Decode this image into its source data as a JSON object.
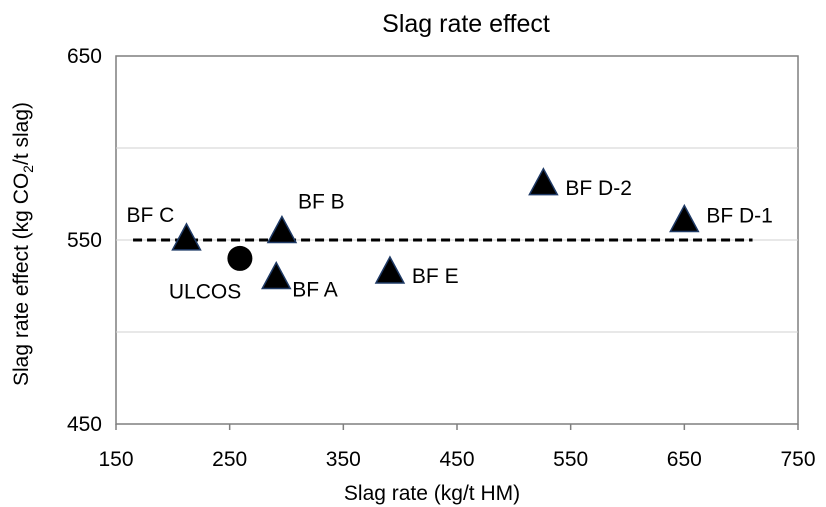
{
  "chart_data": {
    "type": "scatter",
    "title": "Slag rate effect",
    "xlabel": "Slag rate (kg/t HM)",
    "ylabel_parts": [
      "Slag rate effect (kg CO",
      "2",
      "/t slag)"
    ],
    "xlim": [
      150,
      750
    ],
    "ylim": [
      450,
      650
    ],
    "x_ticks": [
      150,
      250,
      350,
      450,
      550,
      650,
      750
    ],
    "y_ticks": [
      450,
      550,
      650
    ],
    "y_gridlines": [
      500,
      550,
      600
    ],
    "grid": true,
    "points": [
      {
        "label": "BF C",
        "x": 212,
        "y": 550,
        "marker": "triangle"
      },
      {
        "label": "BF B",
        "x": 296,
        "y": 554,
        "marker": "triangle"
      },
      {
        "label": "BF A",
        "x": 291,
        "y": 529,
        "marker": "triangle"
      },
      {
        "label": "BF E",
        "x": 391,
        "y": 532,
        "marker": "triangle"
      },
      {
        "label": "BF D-2",
        "x": 526,
        "y": 580,
        "marker": "triangle"
      },
      {
        "label": "BF D-1",
        "x": 650,
        "y": 560,
        "marker": "triangle"
      },
      {
        "label": "ULCOS",
        "x": 259,
        "y": 540,
        "marker": "circle"
      }
    ],
    "reference_line": {
      "style": "dashed",
      "x": [
        165,
        710
      ],
      "y": [
        550,
        550
      ]
    },
    "colors": {
      "marker": "#000000",
      "marker_edge": "#1f3a66",
      "grid": "#d0d0d0",
      "frame": "#7f7f7f"
    }
  }
}
